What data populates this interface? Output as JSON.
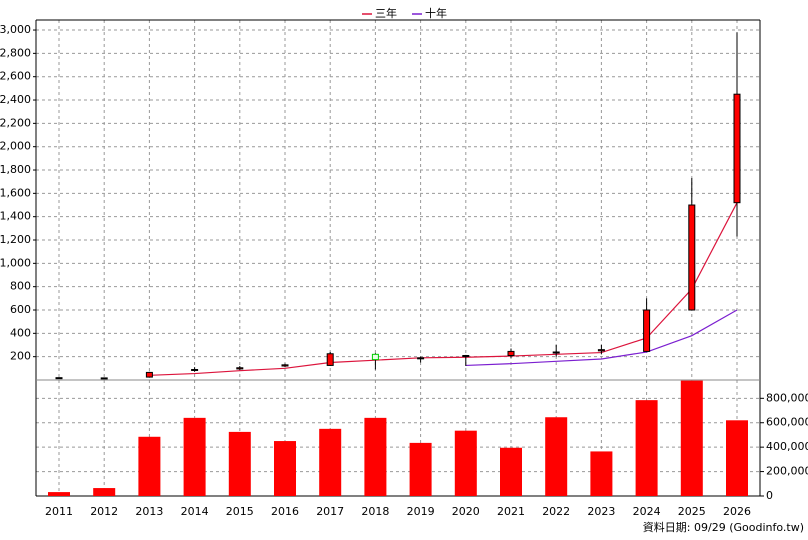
{
  "chart_data": {
    "type": "candlestick",
    "categories": [
      "2011",
      "2012",
      "2013",
      "2014",
      "2015",
      "2016",
      "2017",
      "2018",
      "2019",
      "2020",
      "2021",
      "2022",
      "2023",
      "2024",
      "2025",
      "2026"
    ],
    "candles": {
      "open": [
        18,
        17,
        25,
        85,
        95,
        120,
        125,
        220,
        185,
        205,
        210,
        235,
        250,
        245,
        600,
        1520
      ],
      "high": [
        22,
        20,
        70,
        110,
        120,
        140,
        240,
        230,
        200,
        215,
        270,
        300,
        300,
        700,
        1730,
        2980
      ],
      "low": [
        16,
        15,
        20,
        70,
        85,
        110,
        120,
        90,
        150,
        120,
        190,
        200,
        220,
        240,
        600,
        1230
      ],
      "close": [
        20,
        18,
        65,
        90,
        105,
        130,
        225,
        175,
        190,
        210,
        245,
        240,
        260,
        600,
        1500,
        2450
      ],
      "up_color": "#ff0000",
      "down_color": "#00cc00"
    },
    "series": [
      {
        "name": "三年",
        "color": "#dc143c",
        "values": [
          null,
          null,
          40,
          55,
          80,
          100,
          150,
          170,
          190,
          195,
          205,
          220,
          235,
          360,
          780,
          1520
        ]
      },
      {
        "name": "十年",
        "color": "#7b1fd0",
        "values": [
          null,
          null,
          null,
          null,
          null,
          null,
          null,
          null,
          null,
          125,
          140,
          160,
          180,
          240,
          380,
          600
        ]
      }
    ],
    "ylim": [
      0,
      3086
    ],
    "yticks": [
      200,
      400,
      600,
      800,
      {
        "value": 1000,
        "label": "1,000"
      },
      {
        "value": 1200,
        "label": "1,200"
      },
      {
        "value": 1400,
        "label": "1,400"
      },
      {
        "value": 1600,
        "label": "1,600"
      },
      {
        "value": 1800,
        "label": "1,800"
      },
      {
        "value": 2000,
        "label": "2,000"
      },
      {
        "value": 2200,
        "label": "2,200"
      },
      {
        "value": 2400,
        "label": "2,400"
      },
      {
        "value": 2600,
        "label": "2,600"
      },
      {
        "value": 2800,
        "label": "2,800"
      },
      {
        "value": 3000,
        "label": "3,000"
      }
    ],
    "grid": true,
    "volume": {
      "values": [
        32000,
        65000,
        485000,
        640000,
        525000,
        450000,
        550000,
        640000,
        435000,
        535000,
        395000,
        645000,
        365000,
        785000,
        945000,
        620000
      ],
      "color": "#ff0000",
      "ylim": [
        0,
        950000
      ],
      "yticks": [
        0,
        {
          "value": 200000,
          "label": "200,000"
        },
        {
          "value": 400000,
          "label": "400,000"
        },
        {
          "value": 600000,
          "label": "600,000"
        },
        {
          "value": 800000,
          "label": "800,000"
        }
      ]
    },
    "footer": "資料日期: 09/29 (Goodinfo.tw)"
  }
}
